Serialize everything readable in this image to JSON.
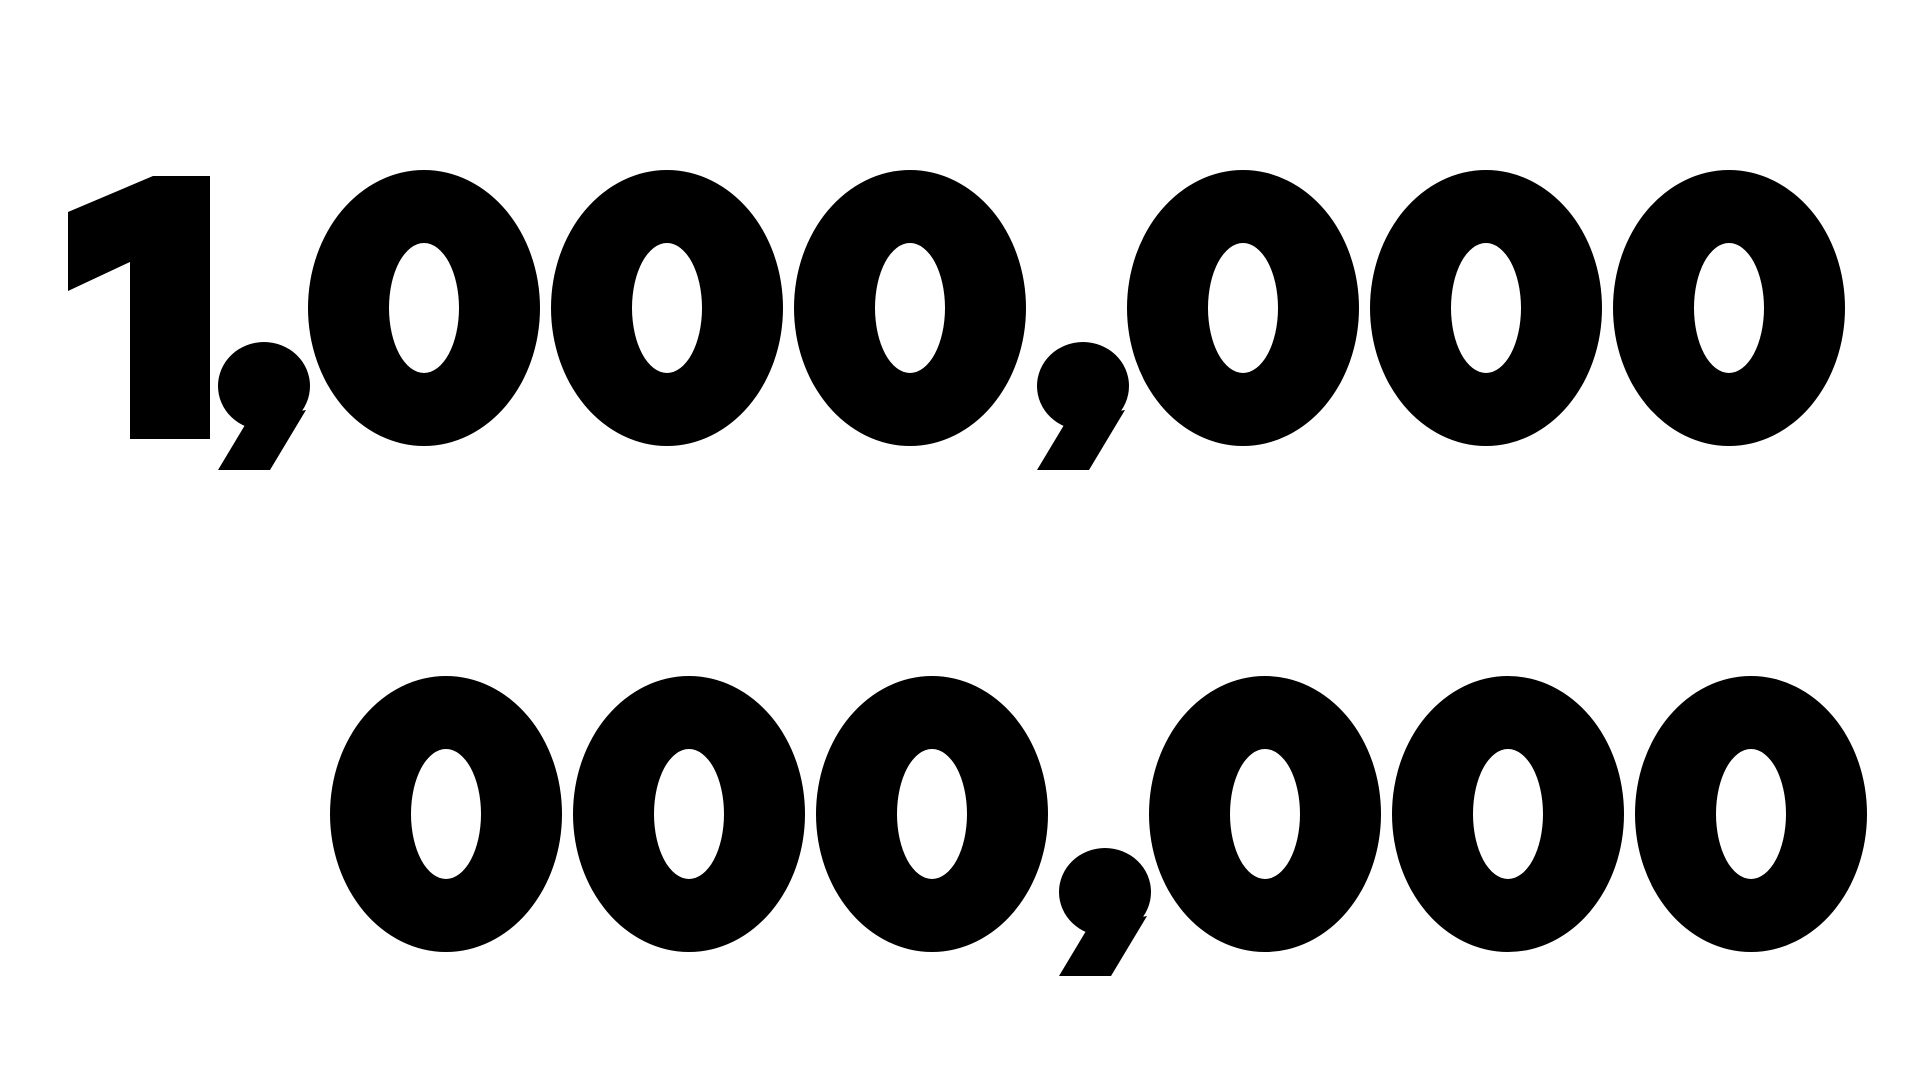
{
  "number": {
    "line1": "1,000,000",
    "line2": "000,000"
  },
  "colors": {
    "text": "#000000",
    "background": "#ffffff"
  }
}
